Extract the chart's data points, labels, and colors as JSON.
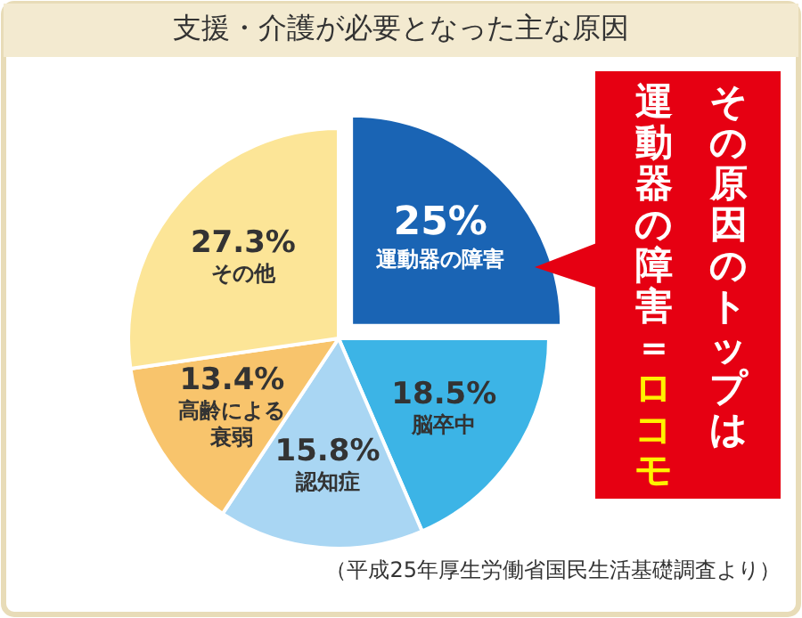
{
  "chart_data": {
    "type": "pie",
    "title": "支援・介護が必要となった主な原因",
    "categories": [
      "運動器の障害",
      "脳卒中",
      "認知症",
      "高齢による衰弱",
      "その他"
    ],
    "values": [
      25,
      18.5,
      15.8,
      13.4,
      27.3
    ],
    "value_labels": [
      "25%",
      "18.5%",
      "15.8%",
      "13.4%",
      "27.3%"
    ],
    "colors": [
      "#1a64b4",
      "#3cb4e6",
      "#a9d6f3",
      "#f8c46c",
      "#fce597"
    ],
    "annotations": [
      "その原因のトップは",
      "運動器の障害＝",
      "ロコモ",
      "（平成25年厚生労働省国民生活基礎調査より）"
    ]
  }
}
